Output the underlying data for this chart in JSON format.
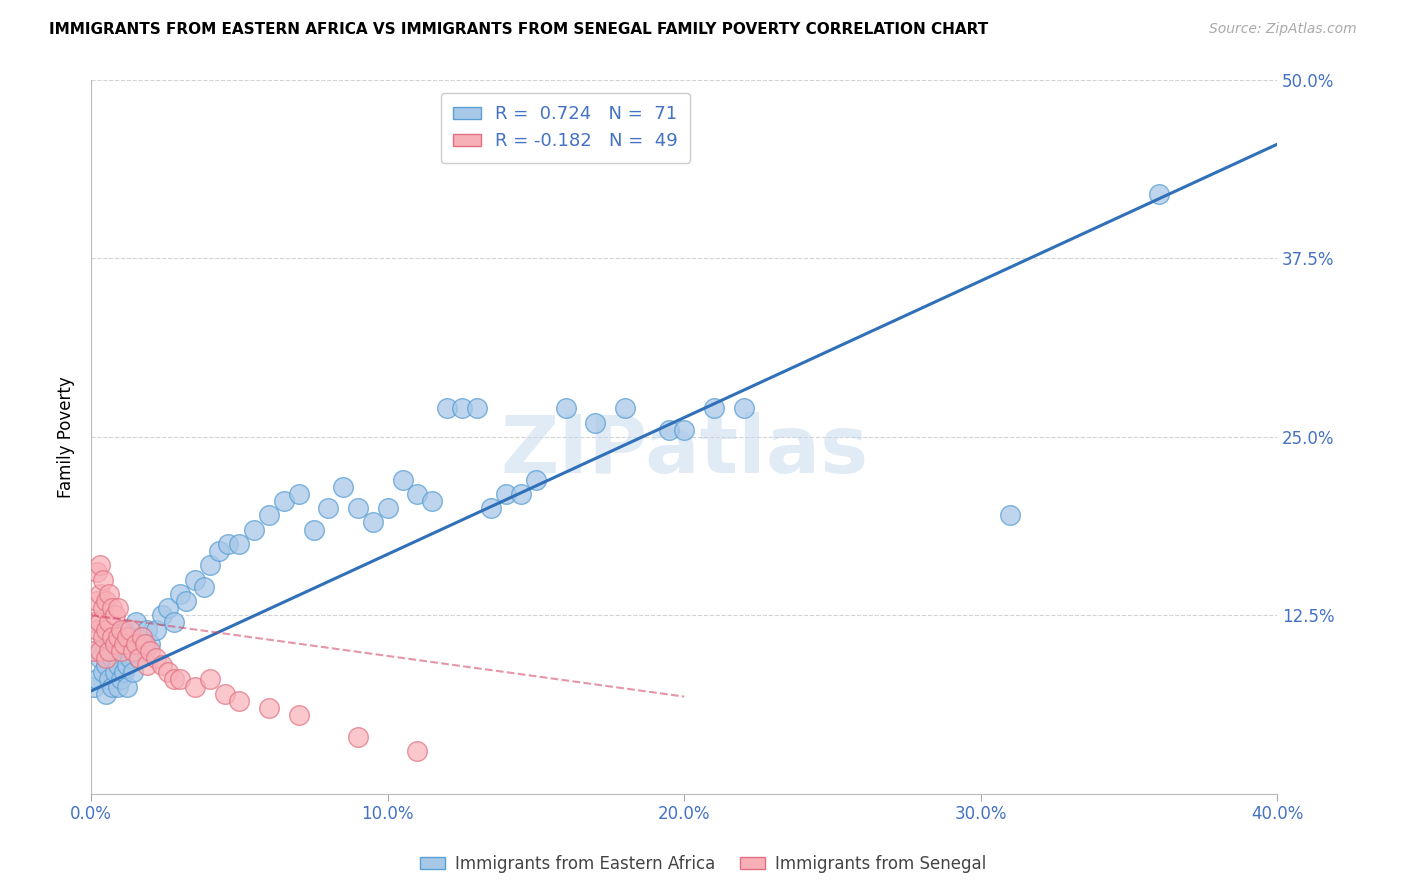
{
  "title": "IMMIGRANTS FROM EASTERN AFRICA VS IMMIGRANTS FROM SENEGAL FAMILY POVERTY CORRELATION CHART",
  "source": "Source: ZipAtlas.com",
  "tick_color": "#4472c4",
  "ylabel": "Family Poverty",
  "xlim": [
    0.0,
    0.4
  ],
  "ylim": [
    0.0,
    0.5
  ],
  "x_ticks": [
    0.0,
    0.1,
    0.2,
    0.3,
    0.4
  ],
  "x_tick_labels": [
    "0.0%",
    "10.0%",
    "20.0%",
    "30.0%",
    "40.0%"
  ],
  "y_ticks_right": [
    0.125,
    0.25,
    0.375,
    0.5
  ],
  "y_tick_labels_right": [
    "12.5%",
    "25.0%",
    "37.5%",
    "50.0%"
  ],
  "blue_color": "#a8c8e8",
  "blue_edge": "#5a9fd4",
  "pink_color": "#f8b0b8",
  "pink_edge": "#e07080",
  "blue_line_color": "#3070b8",
  "pink_line_color": "#d04060",
  "legend_R_blue": "R =  0.724",
  "legend_N_blue": "N =  71",
  "legend_R_pink": "R = -0.182",
  "legend_N_pink": "N =  49",
  "grid_color": "#c8c8c8",
  "watermark": "ZIPatlas",
  "blue_line_x0": 0.0,
  "blue_line_y0": 0.072,
  "blue_line_x1": 0.4,
  "blue_line_y1": 0.455,
  "pink_line_x0": 0.0,
  "pink_line_y0": 0.125,
  "pink_line_x1": 0.2,
  "pink_line_y1": 0.068,
  "blue_scatter_x": [
    0.001,
    0.002,
    0.003,
    0.004,
    0.004,
    0.005,
    0.005,
    0.006,
    0.006,
    0.007,
    0.007,
    0.008,
    0.008,
    0.009,
    0.009,
    0.01,
    0.01,
    0.011,
    0.011,
    0.012,
    0.012,
    0.013,
    0.013,
    0.014,
    0.015,
    0.016,
    0.017,
    0.018,
    0.019,
    0.02,
    0.022,
    0.024,
    0.026,
    0.028,
    0.03,
    0.032,
    0.035,
    0.038,
    0.04,
    0.043,
    0.046,
    0.05,
    0.055,
    0.06,
    0.065,
    0.07,
    0.075,
    0.08,
    0.085,
    0.09,
    0.095,
    0.1,
    0.105,
    0.11,
    0.115,
    0.12,
    0.125,
    0.13,
    0.135,
    0.14,
    0.145,
    0.15,
    0.16,
    0.17,
    0.18,
    0.195,
    0.2,
    0.21,
    0.22,
    0.31,
    0.36
  ],
  "blue_scatter_y": [
    0.075,
    0.08,
    0.095,
    0.085,
    0.105,
    0.07,
    0.09,
    0.08,
    0.1,
    0.075,
    0.095,
    0.085,
    0.11,
    0.09,
    0.075,
    0.08,
    0.1,
    0.085,
    0.115,
    0.09,
    0.075,
    0.11,
    0.095,
    0.085,
    0.12,
    0.095,
    0.11,
    0.1,
    0.115,
    0.105,
    0.115,
    0.125,
    0.13,
    0.12,
    0.14,
    0.135,
    0.15,
    0.145,
    0.16,
    0.17,
    0.175,
    0.175,
    0.185,
    0.195,
    0.205,
    0.21,
    0.185,
    0.2,
    0.215,
    0.2,
    0.19,
    0.2,
    0.22,
    0.21,
    0.205,
    0.27,
    0.27,
    0.27,
    0.2,
    0.21,
    0.21,
    0.22,
    0.27,
    0.26,
    0.27,
    0.255,
    0.255,
    0.27,
    0.27,
    0.195,
    0.42
  ],
  "pink_scatter_x": [
    0.001,
    0.001,
    0.002,
    0.002,
    0.002,
    0.003,
    0.003,
    0.003,
    0.003,
    0.004,
    0.004,
    0.004,
    0.005,
    0.005,
    0.005,
    0.006,
    0.006,
    0.006,
    0.007,
    0.007,
    0.008,
    0.008,
    0.009,
    0.009,
    0.01,
    0.01,
    0.011,
    0.012,
    0.013,
    0.014,
    0.015,
    0.016,
    0.017,
    0.018,
    0.019,
    0.02,
    0.022,
    0.024,
    0.026,
    0.028,
    0.03,
    0.035,
    0.04,
    0.045,
    0.05,
    0.06,
    0.07,
    0.09,
    0.11
  ],
  "pink_scatter_y": [
    0.1,
    0.12,
    0.115,
    0.135,
    0.155,
    0.1,
    0.12,
    0.14,
    0.16,
    0.11,
    0.13,
    0.15,
    0.095,
    0.115,
    0.135,
    0.1,
    0.12,
    0.14,
    0.11,
    0.13,
    0.105,
    0.125,
    0.11,
    0.13,
    0.1,
    0.115,
    0.105,
    0.11,
    0.115,
    0.1,
    0.105,
    0.095,
    0.11,
    0.105,
    0.09,
    0.1,
    0.095,
    0.09,
    0.085,
    0.08,
    0.08,
    0.075,
    0.08,
    0.07,
    0.065,
    0.06,
    0.055,
    0.04,
    0.03
  ]
}
